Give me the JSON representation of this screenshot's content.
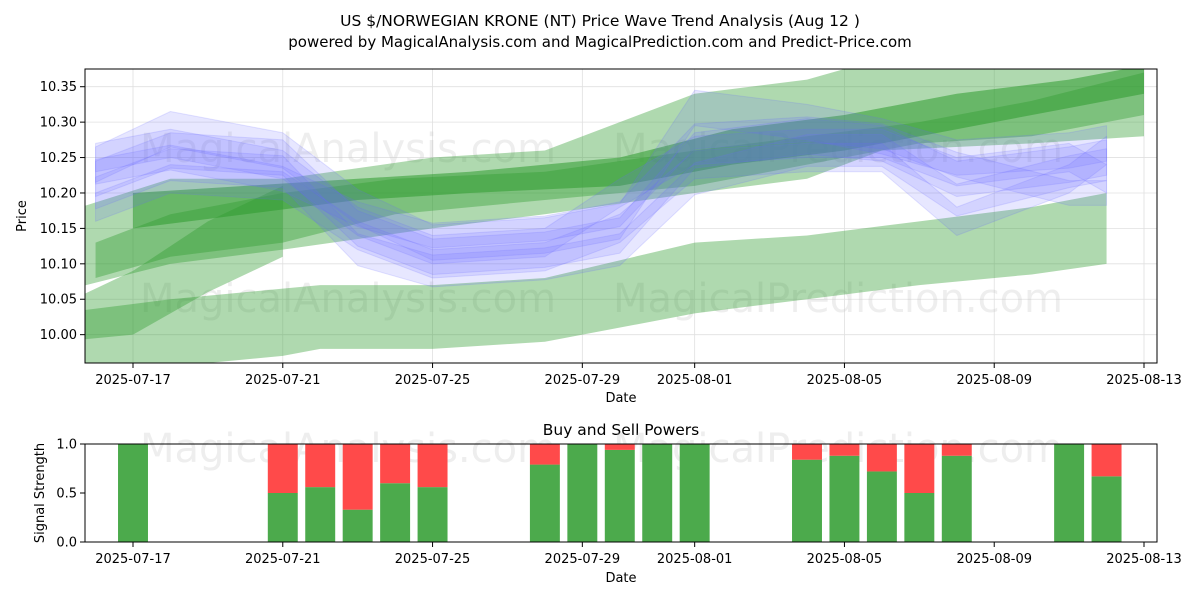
{
  "title": "US $/NORWEGIAN KRONE (NT) Price Wave Trend Analysis (Aug 12 )",
  "subtitle": "powered by MagicalAnalysis.com and MagicalPrediction.com and Predict-Price.com",
  "watermarks": {
    "left": "MagicalAnalysis.com",
    "right": "MagicalPrediction.com"
  },
  "colors": {
    "blue_band": "#6a6aff",
    "green_band": "#2e9a2e",
    "buy": "#4caa4c",
    "sell": "#ff4a4a",
    "grid": "#e0e0e0"
  },
  "chart_data": [
    {
      "type": "area",
      "title": "",
      "xlabel": "Date",
      "ylabel": "Price",
      "xlim": [
        "2025-07-15",
        "2025-08-13"
      ],
      "ylim": [
        9.96,
        10.375
      ],
      "grid": true,
      "x_ticks": [
        "2025-07-17",
        "2025-07-21",
        "2025-07-25",
        "2025-07-29",
        "2025-08-01",
        "2025-08-05",
        "2025-08-09",
        "2025-08-13"
      ],
      "y_ticks": [
        10.0,
        10.05,
        10.1,
        10.15,
        10.2,
        10.25,
        10.3,
        10.35
      ],
      "green_bands": [
        {
          "name": "wide-low",
          "x": [
            "2025-07-15",
            "2025-07-18",
            "2025-07-21",
            "2025-07-22",
            "2025-07-25",
            "2025-07-28",
            "2025-08-01",
            "2025-08-04",
            "2025-08-07",
            "2025-08-10",
            "2025-08-12"
          ],
          "upper": [
            10.03,
            10.05,
            10.065,
            10.07,
            10.07,
            10.08,
            10.13,
            10.14,
            10.16,
            10.18,
            10.2
          ],
          "lower": [
            9.94,
            9.955,
            9.97,
            9.98,
            9.98,
            9.99,
            10.03,
            10.05,
            10.07,
            10.085,
            10.1
          ]
        },
        {
          "name": "wide-upper",
          "x": [
            "2025-07-15",
            "2025-07-18",
            "2025-07-21",
            "2025-07-25",
            "2025-07-28",
            "2025-08-01",
            "2025-08-04",
            "2025-08-06",
            "2025-08-10",
            "2025-08-13"
          ],
          "upper": [
            10.17,
            10.22,
            10.22,
            10.25,
            10.26,
            10.34,
            10.36,
            10.39,
            10.4,
            10.42
          ],
          "lower": [
            10.06,
            10.1,
            10.12,
            10.15,
            10.17,
            10.2,
            10.22,
            10.26,
            10.27,
            10.28
          ]
        },
        {
          "name": "mid",
          "x": [
            "2025-07-16",
            "2025-07-18",
            "2025-07-21",
            "2025-07-24",
            "2025-07-28",
            "2025-08-01",
            "2025-08-04",
            "2025-08-07",
            "2025-08-10",
            "2025-08-13"
          ],
          "upper": [
            10.13,
            10.17,
            10.2,
            10.22,
            10.23,
            10.26,
            10.28,
            10.3,
            10.33,
            10.37
          ],
          "lower": [
            10.08,
            10.11,
            10.13,
            10.17,
            10.19,
            10.21,
            10.24,
            10.27,
            10.28,
            10.31
          ]
        },
        {
          "name": "dark-core",
          "x": [
            "2025-07-17",
            "2025-07-20",
            "2025-07-23",
            "2025-07-26",
            "2025-07-30",
            "2025-08-02",
            "2025-08-05",
            "2025-08-08",
            "2025-08-11",
            "2025-08-13"
          ],
          "upper": [
            10.2,
            10.21,
            10.22,
            10.23,
            10.25,
            10.29,
            10.31,
            10.34,
            10.36,
            10.38
          ],
          "lower": [
            10.15,
            10.17,
            10.19,
            10.2,
            10.21,
            10.24,
            10.26,
            10.29,
            10.32,
            10.34
          ]
        },
        {
          "name": "faint-diag",
          "x": [
            "2025-07-15",
            "2025-07-17",
            "2025-07-19",
            "2025-07-21"
          ],
          "upper": [
            10.04,
            10.09,
            10.16,
            10.21
          ],
          "lower": [
            9.99,
            10.0,
            10.06,
            10.11
          ]
        }
      ],
      "blue_bands": [
        {
          "x": [
            "2025-07-16",
            "2025-07-18",
            "2025-07-21",
            "2025-07-23",
            "2025-07-25",
            "2025-07-28",
            "2025-07-30",
            "2025-08-01",
            "2025-08-04",
            "2025-08-06",
            "2025-08-08",
            "2025-08-11",
            "2025-08-12"
          ],
          "center": [
            10.24,
            10.29,
            10.26,
            10.18,
            10.13,
            10.14,
            10.16,
            10.32,
            10.3,
            10.28,
            10.25,
            10.26,
            10.27
          ],
          "width": 0.05
        },
        {
          "x": [
            "2025-07-16",
            "2025-07-18",
            "2025-07-21",
            "2025-07-23",
            "2025-07-25",
            "2025-07-28",
            "2025-07-30",
            "2025-08-01",
            "2025-08-04",
            "2025-08-06",
            "2025-08-08",
            "2025-08-11",
            "2025-08-12"
          ],
          "center": [
            10.22,
            10.26,
            10.25,
            10.15,
            10.11,
            10.12,
            10.14,
            10.26,
            10.28,
            10.27,
            10.22,
            10.24,
            10.25
          ],
          "width": 0.05
        },
        {
          "x": [
            "2025-07-16",
            "2025-07-18",
            "2025-07-21",
            "2025-07-23",
            "2025-07-25",
            "2025-07-28",
            "2025-07-30",
            "2025-08-01",
            "2025-08-04",
            "2025-08-06",
            "2025-08-08",
            "2025-08-11",
            "2025-08-12"
          ],
          "center": [
            10.2,
            10.24,
            10.23,
            10.12,
            10.09,
            10.1,
            10.12,
            10.22,
            10.26,
            10.26,
            10.19,
            10.23,
            10.24
          ],
          "width": 0.045
        },
        {
          "x": [
            "2025-07-16",
            "2025-07-18",
            "2025-07-21",
            "2025-07-23",
            "2025-07-25",
            "2025-07-28",
            "2025-07-30",
            "2025-08-01",
            "2025-08-04",
            "2025-08-06",
            "2025-08-08",
            "2025-08-11",
            "2025-08-12"
          ],
          "center": [
            10.25,
            10.27,
            10.24,
            10.16,
            10.12,
            10.13,
            10.2,
            10.26,
            10.27,
            10.27,
            10.23,
            10.25,
            10.22
          ],
          "width": 0.04
        },
        {
          "x": [
            "2025-07-16",
            "2025-07-18",
            "2025-07-21",
            "2025-07-23",
            "2025-07-25",
            "2025-07-28",
            "2025-07-30",
            "2025-08-01",
            "2025-08-04",
            "2025-08-06",
            "2025-08-08",
            "2025-08-11",
            "2025-08-12"
          ],
          "center": [
            10.18,
            10.22,
            10.21,
            10.14,
            10.1,
            10.11,
            10.15,
            10.24,
            10.25,
            10.25,
            10.16,
            10.22,
            10.26
          ],
          "width": 0.04
        },
        {
          "x": [
            "2025-07-16",
            "2025-07-18",
            "2025-07-21",
            "2025-07-23",
            "2025-07-25",
            "2025-07-28",
            "2025-07-30",
            "2025-08-01",
            "2025-08-04",
            "2025-08-06",
            "2025-08-08",
            "2025-08-11",
            "2025-08-12"
          ],
          "center": [
            10.23,
            10.25,
            10.22,
            10.17,
            10.14,
            10.15,
            10.17,
            10.28,
            10.29,
            10.28,
            10.24,
            10.2,
            10.2
          ],
          "width": 0.035
        }
      ]
    },
    {
      "type": "bar",
      "title": "Buy and Sell Powers",
      "xlabel": "Date",
      "ylabel": "Signal Strength",
      "xlim": [
        "2025-07-15",
        "2025-08-13"
      ],
      "ylim": [
        0,
        1.0
      ],
      "x_ticks": [
        "2025-07-17",
        "2025-07-21",
        "2025-07-25",
        "2025-07-29",
        "2025-08-01",
        "2025-08-05",
        "2025-08-09",
        "2025-08-13"
      ],
      "y_ticks": [
        0.0,
        0.5,
        1.0
      ],
      "categories": [
        "2025-07-17",
        "2025-07-21",
        "2025-07-22",
        "2025-07-23",
        "2025-07-24",
        "2025-07-25",
        "2025-07-28",
        "2025-07-29",
        "2025-07-30",
        "2025-07-31",
        "2025-08-01",
        "2025-08-04",
        "2025-08-05",
        "2025-08-06",
        "2025-08-07",
        "2025-08-08",
        "2025-08-11",
        "2025-08-12"
      ],
      "series": [
        {
          "name": "Buy",
          "values": [
            1.0,
            0.5,
            0.56,
            0.33,
            0.6,
            0.56,
            0.79,
            1.0,
            0.94,
            1.0,
            1.0,
            0.84,
            0.88,
            0.72,
            0.5,
            0.88,
            1.0,
            0.67
          ]
        },
        {
          "name": "Sell",
          "values": [
            0.0,
            0.5,
            0.44,
            0.67,
            0.4,
            0.44,
            0.21,
            0.0,
            0.06,
            0.0,
            0.0,
            0.16,
            0.12,
            0.28,
            0.5,
            0.12,
            0.0,
            0.33
          ]
        }
      ]
    }
  ]
}
